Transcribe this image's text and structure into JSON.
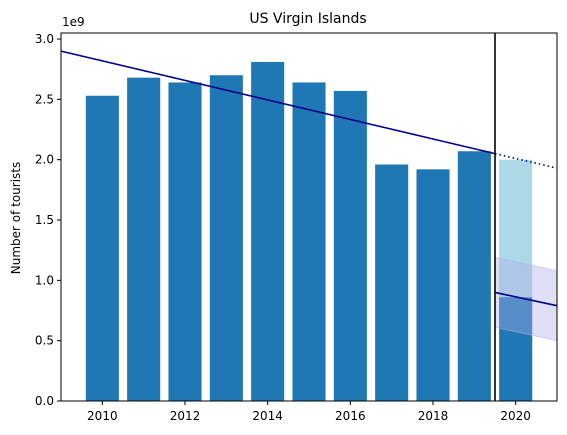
{
  "chart_data": {
    "type": "bar",
    "title": "US Virgin Islands",
    "xlabel": "",
    "ylabel": "Number of tourists",
    "y_multiplier_label": "1e9",
    "xlim": [
      2009.0,
      2021.0
    ],
    "ylim": [
      0,
      3.05
    ],
    "x_ticks": [
      2010,
      2012,
      2014,
      2016,
      2018,
      2020
    ],
    "y_ticks": [
      0.0,
      0.5,
      1.0,
      1.5,
      2.0,
      2.5,
      3.0
    ],
    "y_tick_labels": [
      "0.0",
      "0.5",
      "1.0",
      "1.5",
      "2.0",
      "2.5",
      "3.0"
    ],
    "grid": false,
    "legend": false,
    "categories": [
      2010,
      2011,
      2012,
      2013,
      2014,
      2015,
      2016,
      2017,
      2018,
      2019
    ],
    "values": [
      2.53,
      2.68,
      2.64,
      2.7,
      2.81,
      2.64,
      2.57,
      1.96,
      1.92,
      2.07
    ],
    "bar_color": "#1f77b4",
    "counterfactual_bar": {
      "x": 2020,
      "value": 2.0,
      "color": "#add8e6"
    },
    "actual_bar": {
      "x": 2020,
      "value": 0.86,
      "color": "#1f77b4"
    },
    "trend_line": {
      "color": "#00008b",
      "start": [
        2009.0,
        2.9
      ],
      "end": [
        2019.5,
        2.05
      ]
    },
    "trend_projection": {
      "color": "#00008b",
      "style": "dotted",
      "start": [
        2019.5,
        2.05
      ],
      "end": [
        2021.0,
        1.93
      ]
    },
    "post_trend_line": {
      "color": "#00008b",
      "start": [
        2019.5,
        0.9
      ],
      "end": [
        2021.0,
        0.79
      ]
    },
    "post_trend_band": {
      "color": "#b0b0e8",
      "upper": [
        [
          2019.5,
          1.19
        ],
        [
          2021.0,
          1.08
        ]
      ],
      "lower": [
        [
          2019.5,
          0.61
        ],
        [
          2021.0,
          0.5
        ]
      ]
    },
    "vertical_line": {
      "x": 2019.5,
      "color": "#000000"
    }
  }
}
